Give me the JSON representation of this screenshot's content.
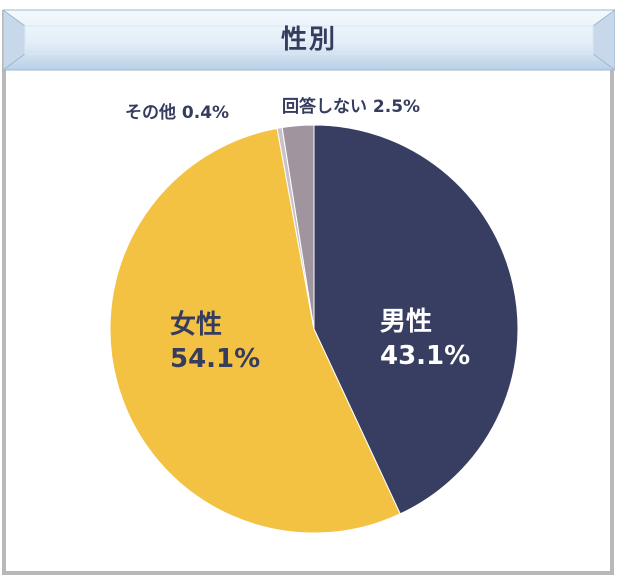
{
  "chart_data": {
    "type": "pie",
    "title": "性別",
    "start_angle_deg": 0,
    "direction": "clockwise",
    "slices": [
      {
        "label": "男性",
        "value": 43.1,
        "value_label": "43.1%",
        "color": "#383e61",
        "label_color": "#ffffff"
      },
      {
        "label": "女性",
        "value": 54.1,
        "value_label": "54.1%",
        "color": "#f3c242",
        "label_color": "#363c5e"
      },
      {
        "label": "その他",
        "value": 0.4,
        "value_label": "0.4%",
        "color": "#c9c2c9",
        "label_color": "#363c5e"
      },
      {
        "label": "回答しない",
        "value": 2.5,
        "value_label": "2.5%",
        "color": "#a0949f",
        "label_color": "#363c5e"
      }
    ],
    "legend": "none"
  }
}
